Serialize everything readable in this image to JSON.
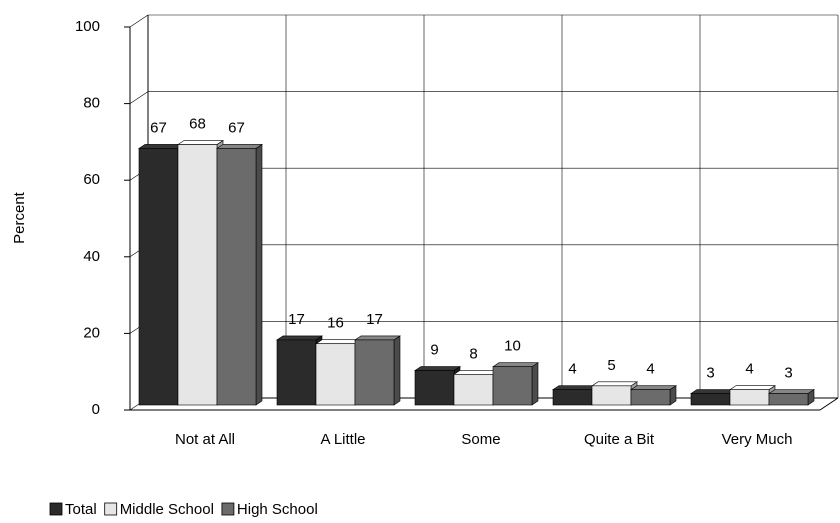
{
  "chart_data": {
    "type": "bar3d",
    "y_label": "Percent",
    "categories": [
      "Not at All",
      "A Little",
      "Some",
      "Quite a Bit",
      "Very Much"
    ],
    "series": [
      {
        "name": "Total",
        "color": "#2b2b2b",
        "values": [
          67,
          17,
          9,
          4,
          3
        ]
      },
      {
        "name": "Middle School",
        "color": "#e6e6e6",
        "values": [
          68,
          16,
          8,
          5,
          4
        ]
      },
      {
        "name": "High School",
        "color": "#6b6b6b",
        "values": [
          67,
          17,
          10,
          4,
          3
        ]
      }
    ],
    "ylim": [
      0,
      100
    ],
    "yticks": [
      0,
      20,
      40,
      60,
      80,
      100
    ],
    "grid": true
  }
}
